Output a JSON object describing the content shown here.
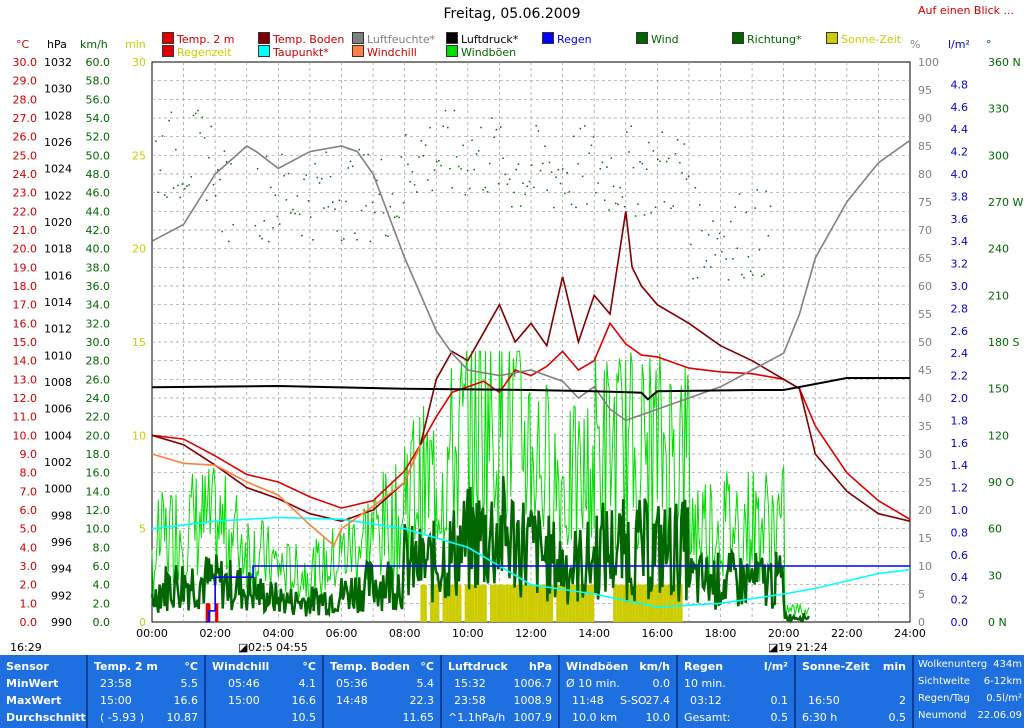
{
  "title": "Freitag, 05.06.2009",
  "top_link": "Auf einen Blick ...",
  "legend": [
    {
      "label": "Temp. 2 m",
      "color": "#e00000",
      "text_color": "#cc0000"
    },
    {
      "label": "Temp. Boden",
      "color": "#800000",
      "text_color": "#cc0000"
    },
    {
      "label": "Luftfeuchte*",
      "color": "#808080",
      "text_color": "#808080"
    },
    {
      "label": "Luftdruck*",
      "color": "#000000",
      "text_color": "#000000"
    },
    {
      "label": "Regen",
      "color": "#0000ff",
      "text_color": "#0000ff"
    },
    {
      "label": "Wind",
      "color": "#006600",
      "text_color": "#006600"
    },
    {
      "label": "Richtung*",
      "color": "#006600",
      "text_color": "#006600"
    },
    {
      "label": "Sonne-Zeit",
      "color": "#cccc00",
      "text_color": "#cccc00"
    },
    {
      "label": "Regenzeit",
      "color": "#e00000",
      "text_color": "#cccc00"
    },
    {
      "label": "Taupunkt*",
      "color": "#00ffff",
      "text_color": "#cc0000"
    },
    {
      "label": "Windchill",
      "color": "#ff8040",
      "text_color": "#cc0000"
    },
    {
      "label": "Windböen",
      "color": "#00dd00",
      "text_color": "#006600"
    }
  ],
  "units": {
    "celsius": "°C",
    "hpa": "hPa",
    "kmh": "km/h",
    "min": "min",
    "percent": "%",
    "lm2": "l/m²",
    "deg": "°"
  },
  "time_bar": {
    "sunrise_left": "16:29",
    "sunrise_time": "02:5",
    "sunrise_time2": "04:55",
    "sunset_time": "19",
    "sunset_time2": "21:24"
  },
  "chart_data": {
    "type": "line",
    "x_label": "",
    "x_ticks": [
      "00:00",
      "02:00",
      "04:00",
      "06:00",
      "08:00",
      "10:00",
      "12:00",
      "14:00",
      "16:00",
      "18:00",
      "20:00",
      "22:00",
      "24:00"
    ],
    "xlim": [
      0,
      24
    ],
    "axes": {
      "celsius": {
        "min": 0,
        "max": 30,
        "step": 1,
        "color": "#cc0000",
        "decimals": 1
      },
      "hpa": {
        "min": 990,
        "max": 1032,
        "step": 2,
        "color": "#000000",
        "decimals": 0
      },
      "kmh": {
        "min": 0,
        "max": 60,
        "step": 2,
        "color": "#006600",
        "decimals": 1
      },
      "min": {
        "min": 0,
        "max": 30,
        "ticks": [
          0,
          5,
          10,
          15,
          20,
          25,
          30
        ],
        "color": "#cccc00"
      },
      "percent": {
        "min": 0,
        "max": 100,
        "step": 5,
        "color": "#808080"
      },
      "lm2": {
        "min": 0,
        "max": 5,
        "ticks": [
          0,
          0.2,
          0.4,
          0.6,
          0.8,
          1.0,
          1.2,
          1.4,
          1.6,
          1.8,
          2.0,
          2.2,
          2.4,
          2.6,
          2.8,
          3.0,
          3.2,
          3.4,
          3.6,
          3.8,
          4.0,
          4.2,
          4.4,
          4.6,
          4.8
        ],
        "color": "#0000cc"
      },
      "deg": {
        "labels": [
          {
            "v": 0,
            "t": "0 N"
          },
          {
            "v": 30,
            "t": "30"
          },
          {
            "v": 60,
            "t": "60"
          },
          {
            "v": 90,
            "t": "90 O"
          },
          {
            "v": 120,
            "t": "120"
          },
          {
            "v": 150,
            "t": "150"
          },
          {
            "v": 180,
            "t": "180 S"
          },
          {
            "v": 210,
            "t": "210"
          },
          {
            "v": 240,
            "t": "240"
          },
          {
            "v": 270,
            "t": "270 W"
          },
          {
            "v": 300,
            "t": "300"
          },
          {
            "v": 330,
            "t": "330"
          },
          {
            "v": 360,
            "t": "360 N"
          }
        ],
        "max": 360,
        "color": "#006600"
      }
    },
    "series": [
      {
        "name": "Temp. 2 m",
        "axis": "celsius",
        "color": "#e00000",
        "x": [
          0,
          1,
          2,
          3,
          4,
          5,
          6,
          7,
          8,
          8.5,
          9,
          9.5,
          10,
          10.5,
          11,
          11.5,
          12,
          12.5,
          13,
          13.5,
          14,
          14.5,
          15,
          15.5,
          16,
          17,
          18,
          19,
          20,
          20.5,
          21,
          22,
          23,
          24
        ],
        "y": [
          10,
          9.8,
          8.9,
          7.9,
          7.5,
          6.7,
          6.1,
          6.5,
          8.1,
          9.5,
          11.0,
          12.3,
          12.6,
          12.9,
          12.3,
          13.5,
          13.2,
          13.7,
          14.5,
          13.5,
          14.0,
          16.0,
          14.9,
          14.3,
          14.2,
          13.6,
          13.4,
          13.3,
          13.0,
          12.5,
          10.5,
          8.0,
          6.5,
          5.5
        ]
      },
      {
        "name": "Temp. Boden",
        "axis": "celsius",
        "color": "#800000",
        "x": [
          0,
          1,
          2,
          3,
          4,
          5,
          6,
          7,
          8,
          8.5,
          9,
          9.5,
          10,
          10.5,
          11,
          11.5,
          12,
          12.5,
          13,
          13.5,
          14,
          14.5,
          15,
          15.2,
          15.5,
          16,
          17,
          18,
          19,
          20,
          20.5,
          21,
          22,
          23,
          24
        ],
        "y": [
          10,
          9.5,
          8.4,
          7.2,
          6.6,
          5.8,
          5.4,
          6.0,
          7.5,
          9.5,
          13.0,
          14.5,
          14.0,
          15.5,
          17.0,
          15.0,
          16.0,
          14.8,
          18.5,
          15.0,
          17.5,
          16.5,
          22.0,
          19.0,
          18.0,
          17.0,
          16.0,
          14.8,
          14.0,
          13.0,
          12.5,
          9.0,
          7.0,
          5.8,
          5.4
        ]
      },
      {
        "name": "Taupunkt*",
        "axis": "celsius",
        "color": "#00ffff",
        "x": [
          0,
          2,
          4,
          6,
          8,
          10,
          12,
          14,
          16,
          18,
          20,
          21,
          22,
          23,
          24
        ],
        "y": [
          5.0,
          5.4,
          5.6,
          5.5,
          5.0,
          4.0,
          2.0,
          1.5,
          0.8,
          1.0,
          1.5,
          1.8,
          2.2,
          2.6,
          2.8
        ]
      },
      {
        "name": "Windchill",
        "axis": "celsius",
        "color": "#ff8040",
        "x": [
          0,
          1,
          2,
          3,
          4,
          5,
          5.76,
          6,
          7,
          8,
          8.5
        ],
        "y": [
          9.0,
          8.5,
          8.4,
          7.5,
          6.8,
          5.2,
          4.1,
          5.0,
          6.2,
          7.5,
          9.5
        ]
      },
      {
        "name": "Luftfeuchte*",
        "axis": "percent",
        "color": "#808080",
        "x": [
          0,
          1,
          2,
          3,
          3.3,
          4,
          5,
          6,
          6.5,
          7,
          8,
          9,
          9.5,
          10,
          11,
          12,
          13,
          13.5,
          14,
          14.5,
          15,
          16,
          17,
          18,
          19,
          20,
          20.5,
          21,
          22,
          23,
          24
        ],
        "y": [
          68,
          71,
          80,
          85,
          84,
          81,
          84,
          85,
          84,
          80,
          65,
          52,
          48,
          45,
          44,
          45,
          43,
          40,
          42,
          38,
          36,
          38,
          40,
          42,
          45,
          48,
          55,
          65,
          75,
          82,
          86
        ]
      },
      {
        "name": "Luftdruck*",
        "axis": "hpa",
        "color": "#000000",
        "x": [
          0,
          4,
          8,
          12,
          14,
          15.5,
          15.7,
          16,
          19,
          20,
          22,
          24
        ],
        "y": [
          1007.6,
          1007.7,
          1007.5,
          1007.4,
          1007.3,
          1007.2,
          1006.7,
          1007.3,
          1007.4,
          1007.4,
          1008.3,
          1008.3
        ]
      },
      {
        "name": "Regen",
        "axis": "lm2",
        "color": "#0000ff",
        "x": [
          1.7,
          1.8,
          2.0,
          2.5,
          3.0,
          3.2,
          20.5,
          24
        ],
        "y": [
          0,
          0.1,
          0.4,
          0.4,
          0.4,
          0.5,
          0.5,
          0.5
        ]
      }
    ],
    "wind_color": "#006600",
    "gust_color": "#00dd00",
    "direction_color": "#006600",
    "sunshine_color": "#cccc00",
    "sunshine_intervals": [
      [
        8.5,
        13.7
      ],
      [
        13.8,
        14.0
      ],
      [
        14.4,
        16.8
      ]
    ],
    "rain_intervals": [
      [
        1.7,
        1.85
      ],
      [
        2.0,
        2.1
      ]
    ]
  },
  "stats": {
    "sensor": {
      "title": "Sensor",
      "rows": [
        "MinWert",
        "MaxWert",
        "Durchschnitt"
      ]
    },
    "temp": {
      "title": "Temp. 2 m",
      "unit": "°C",
      "min_time": "23:58",
      "min": "5.5",
      "max_time": "15:00",
      "max": "16.6",
      "avg_note": "( -5.93 )",
      "avg": "10.87"
    },
    "windchill": {
      "title": "Windchill",
      "unit": "°C",
      "min_time": "05:46",
      "min": "4.1",
      "max_time": "15:00",
      "max": "16.6",
      "avg": "10.5"
    },
    "boden": {
      "title": "Temp. Boden",
      "unit": "°C",
      "min_time": "05:36",
      "min": "5.4",
      "max_time": "14:48",
      "max": "22.3",
      "avg": "11.65"
    },
    "druck": {
      "title": "Luftdruck",
      "unit": "hPa",
      "min_time": "15:32",
      "min": "1006.7",
      "max_time": "23:58",
      "max": "1008.9",
      "avg_note": "^1.1hPa/h",
      "avg": "1007.9"
    },
    "boeen": {
      "title": "Windböen",
      "unit": "km/h",
      "r1_label": "Ø 10 min.",
      "r1_val": "0.0",
      "r2_time": "11:48",
      "r2_dir": "S-SO",
      "r2_val": "27.4",
      "r3_left": "10.0 km",
      "r3_val": "10.0"
    },
    "regen": {
      "title": "Regen",
      "unit": "l/m²",
      "r1": "10 min.",
      "r2_time": "03:12",
      "r2_val": "0.1",
      "r3_label": "Gesamt:",
      "r3_val": "0.5"
    },
    "sonne": {
      "title": "Sonne-Zeit",
      "unit": "min",
      "r2_time": "16:50",
      "r2_val": "2",
      "r3_left": "6:30 h",
      "r3_val": "0.5"
    },
    "misc": {
      "l1": "Wolkenunterg",
      "v1": "434m",
      "l2": "Sichtweite",
      "v2": "6-12km",
      "l3": "Regen/Tag",
      "v3": "0.5l/m²",
      "l4": "Neumond",
      "v4": "22.06.09"
    }
  }
}
